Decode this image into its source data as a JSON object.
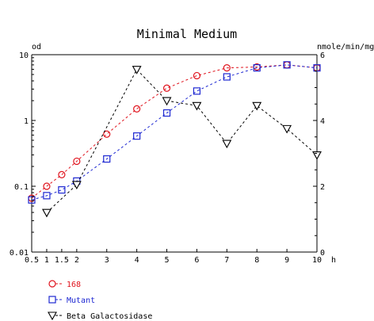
{
  "chart_data": {
    "type": "line",
    "title": "Minimal Medium",
    "xlabel": "h",
    "ylabel_left": "od",
    "ylabel_right": "nmole/min/mg",
    "x_ticks": [
      "0.5",
      "1",
      "1.5",
      "2",
      "3",
      "4",
      "5",
      "6",
      "7",
      "8",
      "9",
      "10"
    ],
    "x_range": [
      0.5,
      10
    ],
    "y_left": {
      "scale": "log",
      "range": [
        0.01,
        10
      ],
      "ticks": [
        "0.01",
        "0.1",
        "1",
        "10"
      ]
    },
    "y_right": {
      "scale": "linear",
      "range": [
        0,
        6
      ],
      "ticks": [
        "0",
        "2",
        "4",
        "6"
      ]
    },
    "grid": false,
    "legend_position": "bottom-left",
    "series": [
      {
        "name": "168",
        "axis": "left",
        "marker": "circle",
        "color": "#e0141e",
        "x": [
          0.5,
          1,
          1.5,
          2,
          3,
          4,
          5,
          6,
          7,
          8,
          9,
          10
        ],
        "y": [
          0.066,
          0.1,
          0.15,
          0.24,
          0.62,
          1.5,
          3.1,
          4.8,
          6.3,
          6.5,
          7.0,
          6.3
        ]
      },
      {
        "name": "Mutant",
        "axis": "left",
        "marker": "square",
        "color": "#1e28d2",
        "x": [
          0.5,
          1,
          1.5,
          2,
          3,
          4,
          5,
          6,
          7,
          8,
          9,
          10
        ],
        "y": [
          0.062,
          0.072,
          0.088,
          0.12,
          0.26,
          0.58,
          1.3,
          2.8,
          4.6,
          6.3,
          7.0,
          6.3
        ]
      },
      {
        "name": "Beta Galactosidase",
        "axis": "right",
        "marker": "triangle-down",
        "color": "#000000",
        "x": [
          1,
          2,
          4,
          5,
          6,
          7,
          8,
          9,
          10
        ],
        "y": [
          1.2,
          2.05,
          5.55,
          4.6,
          4.45,
          3.3,
          4.45,
          3.75,
          2.95
        ]
      }
    ]
  }
}
